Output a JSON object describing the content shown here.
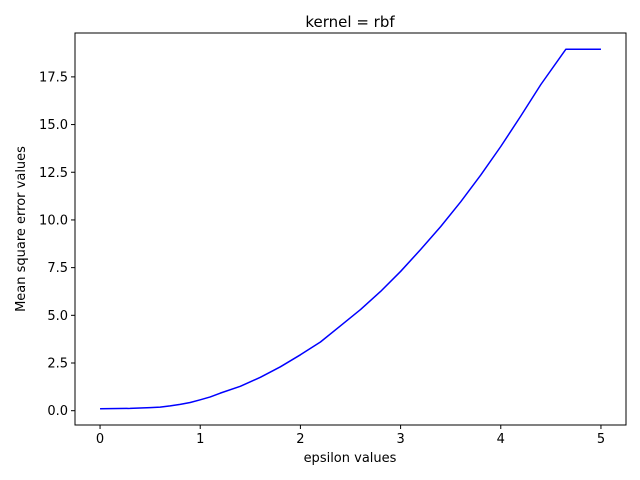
{
  "chart_data": {
    "type": "line",
    "title": "kernel = rbf",
    "xlabel": "epsilon values",
    "ylabel": "Mean square error values",
    "xlim": [
      -0.25,
      5.25
    ],
    "ylim": [
      -0.75,
      19.8
    ],
    "xticks": [
      0,
      1,
      2,
      3,
      4,
      5
    ],
    "xtick_labels": [
      "0",
      "1",
      "2",
      "3",
      "4",
      "5"
    ],
    "yticks": [
      0.0,
      2.5,
      5.0,
      7.5,
      10.0,
      12.5,
      15.0,
      17.5
    ],
    "ytick_labels": [
      "0.0",
      "2.5",
      "5.0",
      "7.5",
      "10.0",
      "12.5",
      "15.0",
      "17.5"
    ],
    "grid": false,
    "series": [
      {
        "color": "#0000ff",
        "x": [
          0,
          0.3,
          0.5,
          0.6,
          0.7,
          0.8,
          0.9,
          1.0,
          1.1,
          1.2,
          1.4,
          1.6,
          1.8,
          2.0,
          2.2,
          2.4,
          2.6,
          2.8,
          3.0,
          3.2,
          3.4,
          3.6,
          3.8,
          4.0,
          4.2,
          4.4,
          4.65,
          5.0
        ],
        "y": [
          0.1,
          0.12,
          0.16,
          0.19,
          0.25,
          0.33,
          0.43,
          0.57,
          0.72,
          0.92,
          1.28,
          1.75,
          2.3,
          2.93,
          3.6,
          4.45,
          5.3,
          6.25,
          7.3,
          8.45,
          9.65,
          10.95,
          12.35,
          13.85,
          15.45,
          17.1,
          18.95,
          18.95
        ]
      }
    ]
  }
}
